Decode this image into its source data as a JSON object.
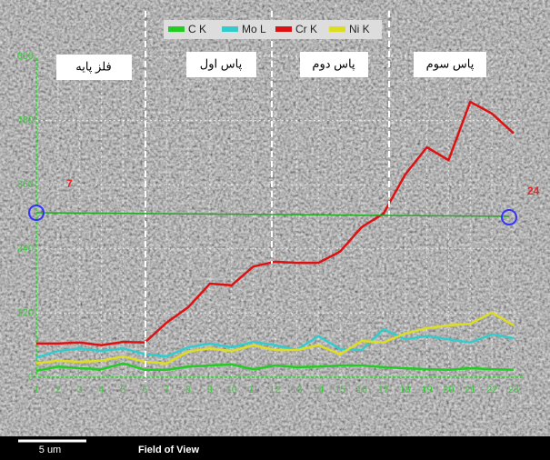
{
  "chart_data": {
    "type": "line",
    "categories": [
      "1",
      "2",
      "3",
      "4",
      "5",
      "6",
      "7",
      "8",
      "9",
      "10",
      "11",
      "12",
      "13",
      "14",
      "15",
      "16",
      "17",
      "18",
      "19",
      "20",
      "21",
      "22",
      "23"
    ],
    "series": [
      {
        "name": "C K",
        "color": "#22cc22",
        "values": [
          12,
          20,
          17,
          15,
          26,
          14,
          14,
          20,
          22,
          24,
          15,
          22,
          19,
          20,
          22,
          22,
          19,
          17,
          15,
          14,
          17,
          15,
          14
        ]
      },
      {
        "name": "Mo L",
        "color": "#33cccc",
        "values": [
          37,
          49,
          54,
          49,
          54,
          43,
          39,
          56,
          63,
          56,
          66,
          60,
          51,
          77,
          53,
          51,
          90,
          71,
          77,
          71,
          65,
          80,
          73
        ]
      },
      {
        "name": "Cr K",
        "color": "#dd1111",
        "values": [
          63,
          63,
          65,
          60,
          66,
          65,
          102,
          131,
          175,
          172,
          207,
          216,
          214,
          214,
          235,
          281,
          306,
          379,
          430,
          406,
          515,
          493,
          456
        ]
      },
      {
        "name": "Ni K",
        "color": "#dddd22",
        "values": [
          26,
          31,
          29,
          31,
          39,
          29,
          26,
          48,
          54,
          49,
          60,
          51,
          51,
          60,
          43,
          68,
          65,
          82,
          92,
          97,
          100,
          121,
          97
        ]
      }
    ],
    "ylim": [
      0,
      600
    ],
    "yticks": [
      0,
      120,
      240,
      360,
      480,
      600
    ],
    "grid": true,
    "sections": [
      "فلز پایه",
      "پاس اول",
      "پاس دوم",
      "پاس سوم"
    ],
    "markers": [
      "7",
      "24"
    ],
    "scale_bar": "5 um",
    "footer": "Field of View"
  }
}
